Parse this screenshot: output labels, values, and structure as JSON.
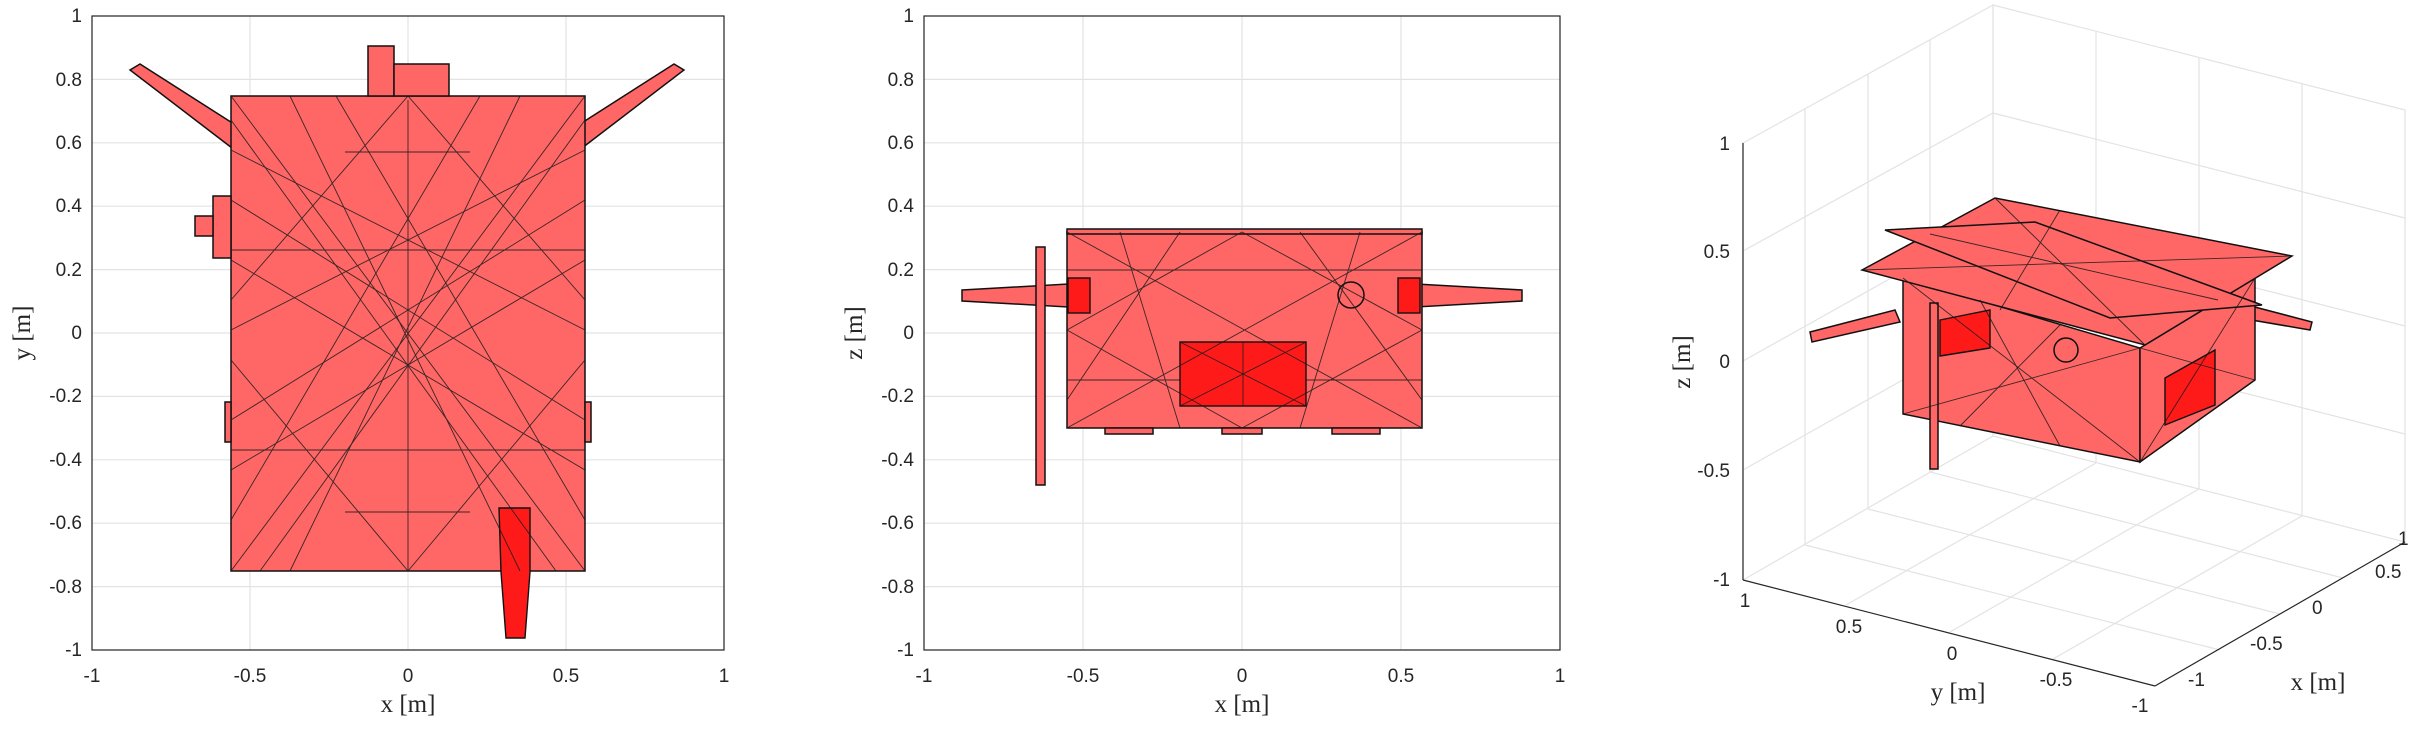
{
  "views": [
    {
      "id": "top",
      "xlabel": "x [m]",
      "ylabel": "y [m]",
      "xticks": [
        "-1",
        "-0.5",
        "0",
        "0.5",
        "1"
      ],
      "yticks": [
        "1",
        "0.8",
        "0.6",
        "0.4",
        "0.2",
        "0",
        "-0.2",
        "-0.4",
        "-0.6",
        "-0.8",
        "-1"
      ]
    },
    {
      "id": "front",
      "xlabel": "x [m]",
      "ylabel": "z [m]",
      "xticks": [
        "-1",
        "-0.5",
        "0",
        "0.5",
        "1"
      ],
      "yticks": [
        "1",
        "0.8",
        "0.6",
        "0.4",
        "0.2",
        "0",
        "-0.2",
        "-0.4",
        "-0.6",
        "-0.8",
        "-1"
      ]
    },
    {
      "id": "iso",
      "xlabel": "x [m]",
      "ylabel": "y [m]",
      "zlabel": "z [m]",
      "xticks": [
        "-1",
        "-0.5",
        "0",
        "0.5",
        "1"
      ],
      "yticks": [
        "1",
        "0.5",
        "0",
        "-0.5",
        "-1"
      ],
      "zticks": [
        "1",
        "0.5",
        "0",
        "-0.5",
        "-1"
      ]
    }
  ],
  "colors": {
    "mesh_fill": "#ff6666",
    "panel_fill": "#ff1a1a",
    "edge": "#111111",
    "grid": "#e3e3e3"
  }
}
